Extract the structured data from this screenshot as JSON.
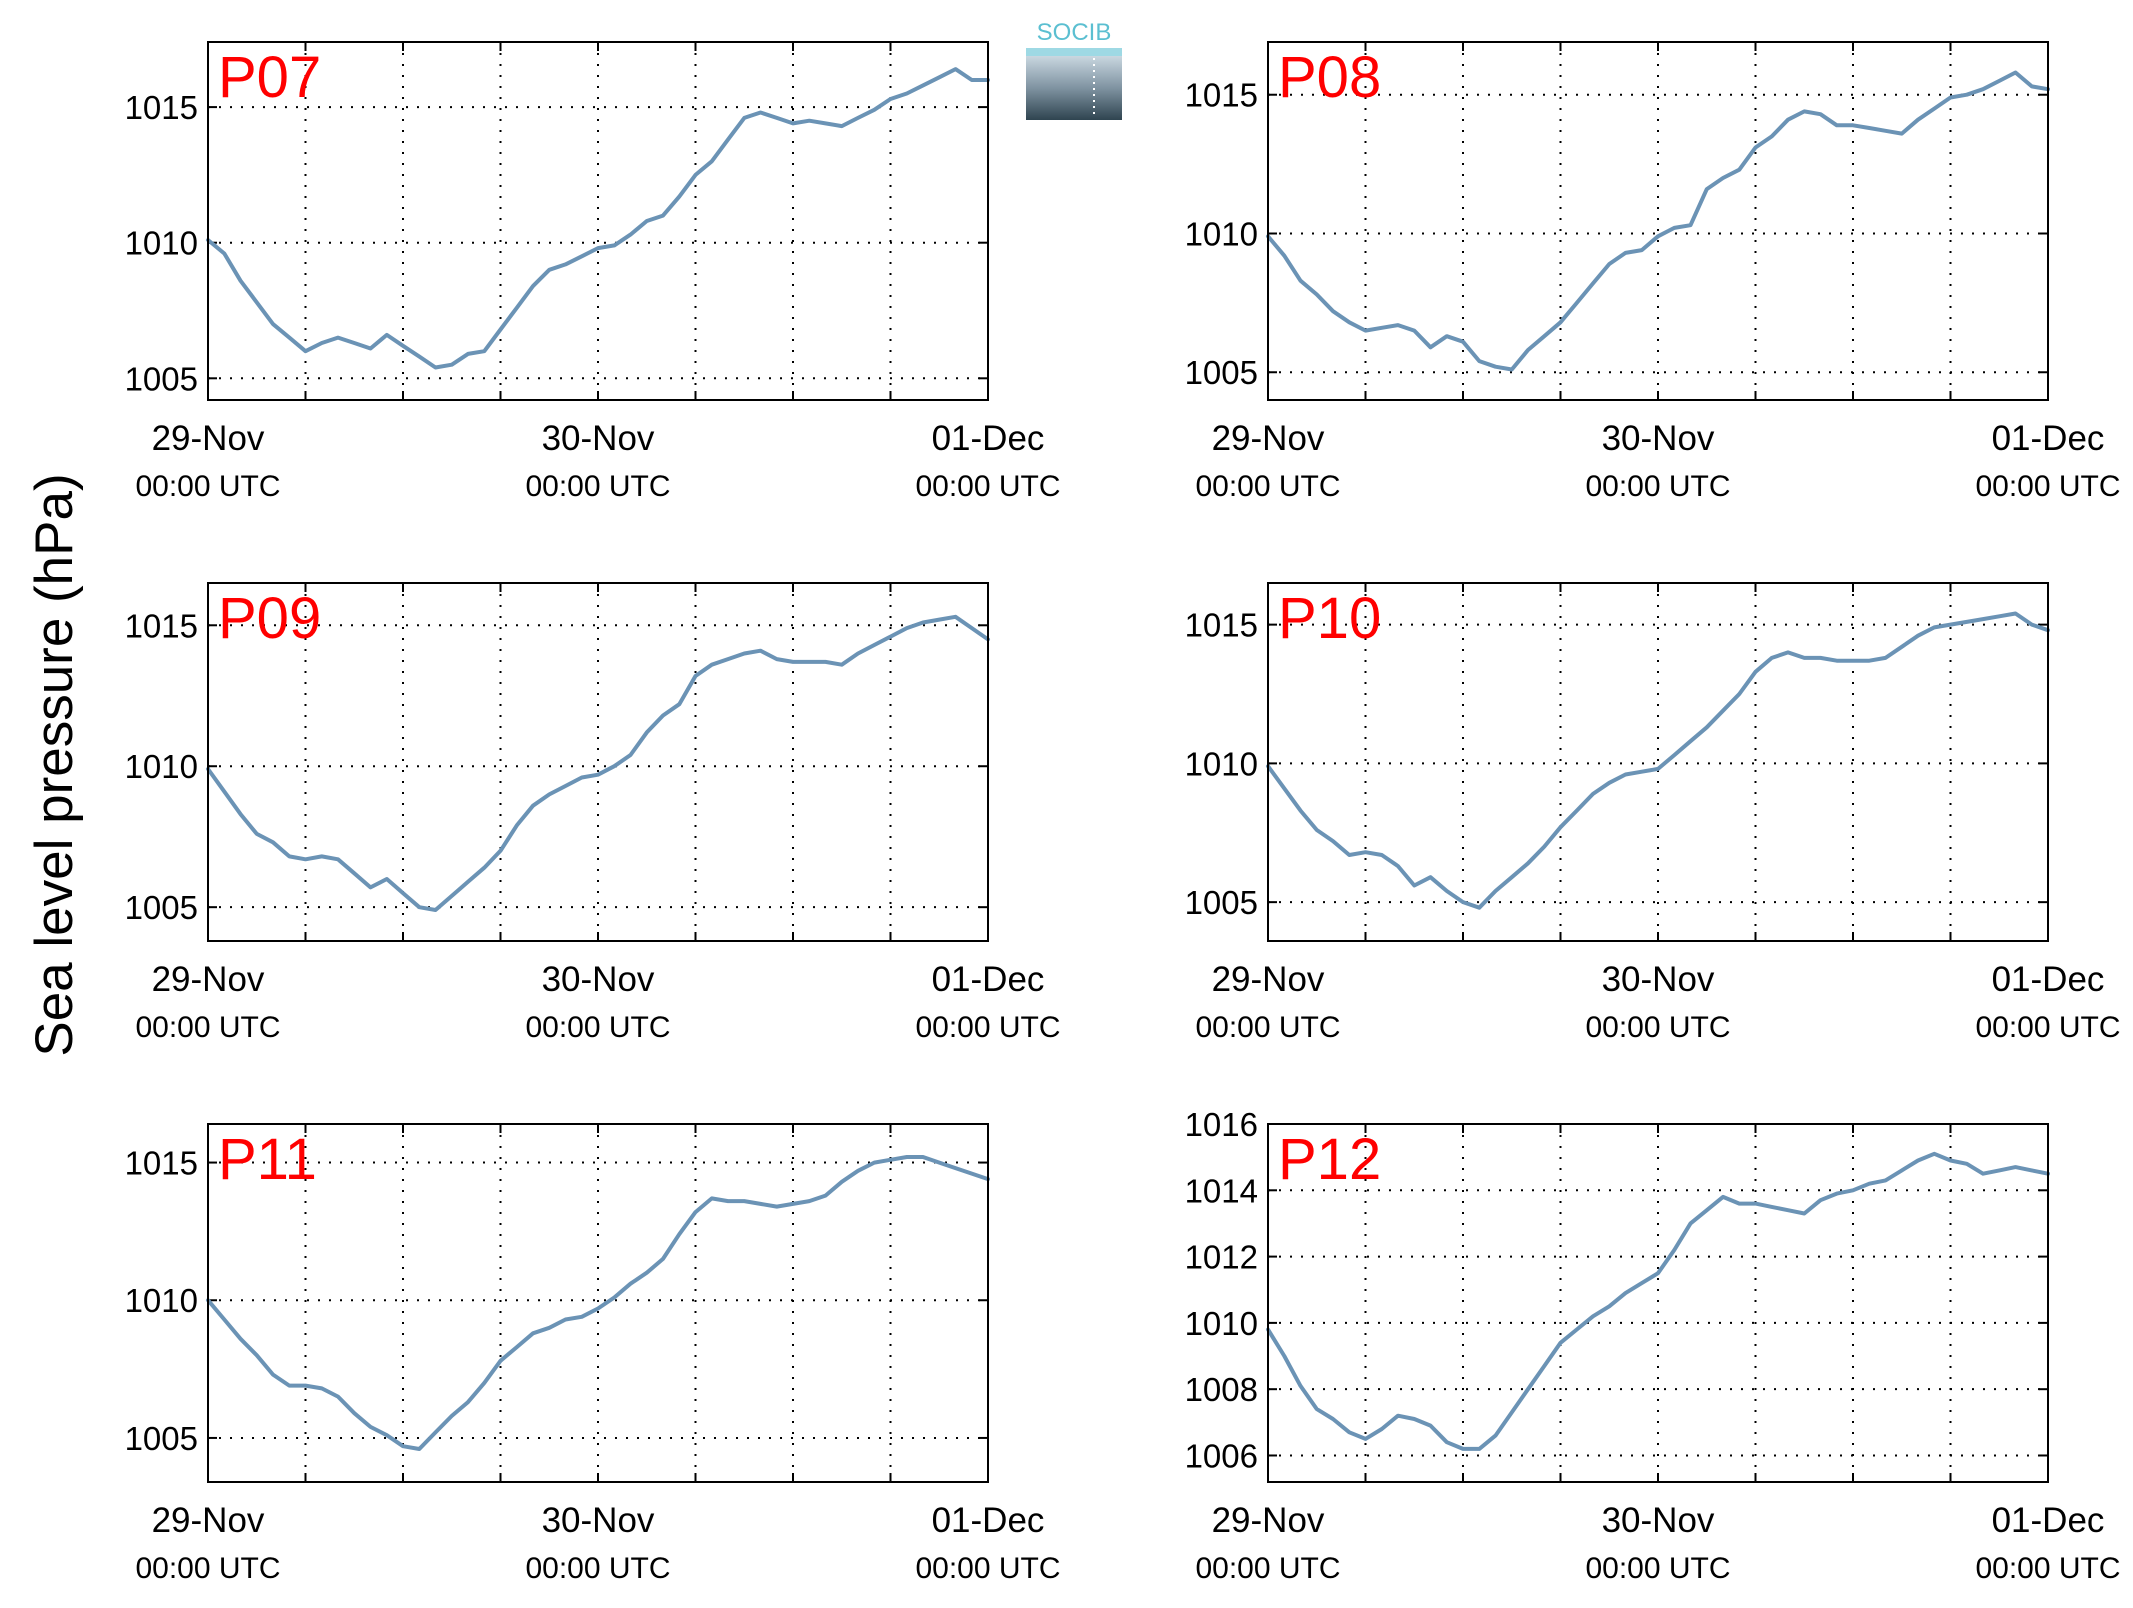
{
  "figure": {
    "ylabel": "Sea level pressure (hPa)",
    "logo_text": "SOCIB"
  },
  "colors": {
    "line": "#6b93b5",
    "panel_label": "#ff0000",
    "grid": "#000000",
    "logo_text": "#5bbfd1"
  },
  "chart_data": [
    {
      "type": "line",
      "title": "P07",
      "x_ticks": [
        "29-Nov",
        "30-Nov",
        "01-Dec"
      ],
      "x_tick_sublabels": [
        "00:00 UTC",
        "00:00 UTC",
        "00:00 UTC"
      ],
      "xlim_hours": [
        0,
        48
      ],
      "ylim": [
        1004.2,
        1017.4
      ],
      "y_ticks": [
        1005,
        1010,
        1015
      ],
      "grid": true,
      "series": [
        {
          "x_hours": [
            0,
            1,
            2,
            3,
            4,
            5,
            6,
            7,
            8,
            9,
            10,
            11,
            12,
            13,
            14,
            15,
            16,
            17,
            18,
            19,
            20,
            21,
            22,
            23,
            24,
            25,
            26,
            27,
            28,
            29,
            30,
            31,
            32,
            33,
            34,
            35,
            36,
            37,
            38,
            39,
            40,
            41,
            42,
            43,
            44,
            45,
            46,
            47,
            48
          ],
          "values": [
            1010.1,
            1009.6,
            1008.6,
            1007.8,
            1007.0,
            1006.5,
            1006.0,
            1006.3,
            1006.5,
            1006.3,
            1006.1,
            1006.6,
            1006.2,
            1005.8,
            1005.4,
            1005.5,
            1005.9,
            1006.0,
            1006.8,
            1007.6,
            1008.4,
            1009.0,
            1009.2,
            1009.5,
            1009.8,
            1009.9,
            1010.3,
            1010.8,
            1011.0,
            1011.7,
            1012.5,
            1013.0,
            1013.8,
            1014.6,
            1014.8,
            1014.6,
            1014.4,
            1014.5,
            1014.4,
            1014.3,
            1014.6,
            1014.9,
            1015.3,
            1015.5,
            1015.8,
            1016.1,
            1016.4,
            1016.0,
            1016.0
          ]
        }
      ]
    },
    {
      "type": "line",
      "title": "P08",
      "x_ticks": [
        "29-Nov",
        "30-Nov",
        "01-Dec"
      ],
      "x_tick_sublabels": [
        "00:00 UTC",
        "00:00 UTC",
        "00:00 UTC"
      ],
      "xlim_hours": [
        0,
        48
      ],
      "ylim": [
        1004.0,
        1016.9
      ],
      "y_ticks": [
        1005,
        1010,
        1015
      ],
      "grid": true,
      "series": [
        {
          "x_hours": [
            0,
            1,
            2,
            3,
            4,
            5,
            6,
            7,
            8,
            9,
            10,
            11,
            12,
            13,
            14,
            15,
            16,
            17,
            18,
            19,
            20,
            21,
            22,
            23,
            24,
            25,
            26,
            27,
            28,
            29,
            30,
            31,
            32,
            33,
            34,
            35,
            36,
            37,
            38,
            39,
            40,
            41,
            42,
            43,
            44,
            45,
            46,
            47,
            48
          ],
          "values": [
            1009.9,
            1009.2,
            1008.3,
            1007.8,
            1007.2,
            1006.8,
            1006.5,
            1006.6,
            1006.7,
            1006.5,
            1005.9,
            1006.3,
            1006.1,
            1005.4,
            1005.2,
            1005.1,
            1005.8,
            1006.3,
            1006.8,
            1007.5,
            1008.2,
            1008.9,
            1009.3,
            1009.4,
            1009.9,
            1010.2,
            1010.3,
            1011.6,
            1012.0,
            1012.3,
            1013.1,
            1013.5,
            1014.1,
            1014.4,
            1014.3,
            1013.9,
            1013.9,
            1013.8,
            1013.7,
            1013.6,
            1014.1,
            1014.5,
            1014.9,
            1015.0,
            1015.2,
            1015.5,
            1015.8,
            1015.3,
            1015.2
          ]
        }
      ]
    },
    {
      "type": "line",
      "title": "P09",
      "x_ticks": [
        "29-Nov",
        "30-Nov",
        "01-Dec"
      ],
      "x_tick_sublabels": [
        "00:00 UTC",
        "00:00 UTC",
        "00:00 UTC"
      ],
      "xlim_hours": [
        0,
        48
      ],
      "ylim": [
        1003.8,
        1016.5
      ],
      "y_ticks": [
        1005,
        1010,
        1015
      ],
      "grid": true,
      "series": [
        {
          "x_hours": [
            0,
            1,
            2,
            3,
            4,
            5,
            6,
            7,
            8,
            9,
            10,
            11,
            12,
            13,
            14,
            15,
            16,
            17,
            18,
            19,
            20,
            21,
            22,
            23,
            24,
            25,
            26,
            27,
            28,
            29,
            30,
            31,
            32,
            33,
            34,
            35,
            36,
            37,
            38,
            39,
            40,
            41,
            42,
            43,
            44,
            45,
            46,
            47,
            48
          ],
          "values": [
            1009.9,
            1009.1,
            1008.3,
            1007.6,
            1007.3,
            1006.8,
            1006.7,
            1006.8,
            1006.7,
            1006.2,
            1005.7,
            1006.0,
            1005.5,
            1005.0,
            1004.9,
            1005.4,
            1005.9,
            1006.4,
            1007.0,
            1007.9,
            1008.6,
            1009.0,
            1009.3,
            1009.6,
            1009.7,
            1010.0,
            1010.4,
            1011.2,
            1011.8,
            1012.2,
            1013.2,
            1013.6,
            1013.8,
            1014.0,
            1014.1,
            1013.8,
            1013.7,
            1013.7,
            1013.7,
            1013.6,
            1014.0,
            1014.3,
            1014.6,
            1014.9,
            1015.1,
            1015.2,
            1015.3,
            1014.9,
            1014.5
          ]
        }
      ]
    },
    {
      "type": "line",
      "title": "P10",
      "x_ticks": [
        "29-Nov",
        "30-Nov",
        "01-Dec"
      ],
      "x_tick_sublabels": [
        "00:00 UTC",
        "00:00 UTC",
        "00:00 UTC"
      ],
      "xlim_hours": [
        0,
        48
      ],
      "ylim": [
        1003.6,
        1016.5
      ],
      "y_ticks": [
        1005,
        1010,
        1015
      ],
      "grid": true,
      "series": [
        {
          "x_hours": [
            0,
            1,
            2,
            3,
            4,
            5,
            6,
            7,
            8,
            9,
            10,
            11,
            12,
            13,
            14,
            15,
            16,
            17,
            18,
            19,
            20,
            21,
            22,
            23,
            24,
            25,
            26,
            27,
            28,
            29,
            30,
            31,
            32,
            33,
            34,
            35,
            36,
            37,
            38,
            39,
            40,
            41,
            42,
            43,
            44,
            45,
            46,
            47,
            48
          ],
          "values": [
            1009.9,
            1009.1,
            1008.3,
            1007.6,
            1007.2,
            1006.7,
            1006.8,
            1006.7,
            1006.3,
            1005.6,
            1005.9,
            1005.4,
            1005.0,
            1004.8,
            1005.4,
            1005.9,
            1006.4,
            1007.0,
            1007.7,
            1008.3,
            1008.9,
            1009.3,
            1009.6,
            1009.7,
            1009.8,
            1010.3,
            1010.8,
            1011.3,
            1011.9,
            1012.5,
            1013.3,
            1013.8,
            1014.0,
            1013.8,
            1013.8,
            1013.7,
            1013.7,
            1013.7,
            1013.8,
            1014.2,
            1014.6,
            1014.9,
            1015.0,
            1015.1,
            1015.2,
            1015.3,
            1015.4,
            1015.0,
            1014.8
          ]
        }
      ]
    },
    {
      "type": "line",
      "title": "P11",
      "x_ticks": [
        "29-Nov",
        "30-Nov",
        "01-Dec"
      ],
      "x_tick_sublabels": [
        "00:00 UTC",
        "00:00 UTC",
        "00:00 UTC"
      ],
      "xlim_hours": [
        0,
        48
      ],
      "ylim": [
        1003.4,
        1016.4
      ],
      "y_ticks": [
        1005,
        1010,
        1015
      ],
      "grid": true,
      "series": [
        {
          "x_hours": [
            0,
            1,
            2,
            3,
            4,
            5,
            6,
            7,
            8,
            9,
            10,
            11,
            12,
            13,
            14,
            15,
            16,
            17,
            18,
            19,
            20,
            21,
            22,
            23,
            24,
            25,
            26,
            27,
            28,
            29,
            30,
            31,
            32,
            33,
            34,
            35,
            36,
            37,
            38,
            39,
            40,
            41,
            42,
            43,
            44,
            45,
            46,
            47,
            48
          ],
          "values": [
            1010.0,
            1009.3,
            1008.6,
            1008.0,
            1007.3,
            1006.9,
            1006.9,
            1006.8,
            1006.5,
            1005.9,
            1005.4,
            1005.1,
            1004.7,
            1004.6,
            1005.2,
            1005.8,
            1006.3,
            1007.0,
            1007.8,
            1008.3,
            1008.8,
            1009.0,
            1009.3,
            1009.4,
            1009.7,
            1010.1,
            1010.6,
            1011.0,
            1011.5,
            1012.4,
            1013.2,
            1013.7,
            1013.6,
            1013.6,
            1013.5,
            1013.4,
            1013.5,
            1013.6,
            1013.8,
            1014.3,
            1014.7,
            1015.0,
            1015.1,
            1015.2,
            1015.2,
            1015.0,
            1014.8,
            1014.6,
            1014.4
          ]
        }
      ]
    },
    {
      "type": "line",
      "title": "P12",
      "x_ticks": [
        "29-Nov",
        "30-Nov",
        "01-Dec"
      ],
      "x_tick_sublabels": [
        "00:00 UTC",
        "00:00 UTC",
        "00:00 UTC"
      ],
      "xlim_hours": [
        0,
        48
      ],
      "ylim": [
        1005.2,
        1016.0
      ],
      "y_ticks": [
        1006,
        1008,
        1010,
        1012,
        1014,
        1016
      ],
      "grid": true,
      "series": [
        {
          "x_hours": [
            0,
            1,
            2,
            3,
            4,
            5,
            6,
            7,
            8,
            9,
            10,
            11,
            12,
            13,
            14,
            15,
            16,
            17,
            18,
            19,
            20,
            21,
            22,
            23,
            24,
            25,
            26,
            27,
            28,
            29,
            30,
            31,
            32,
            33,
            34,
            35,
            36,
            37,
            38,
            39,
            40,
            41,
            42,
            43,
            44,
            45,
            46,
            47,
            48
          ],
          "values": [
            1009.8,
            1009.0,
            1008.1,
            1007.4,
            1007.1,
            1006.7,
            1006.5,
            1006.8,
            1007.2,
            1007.1,
            1006.9,
            1006.4,
            1006.2,
            1006.2,
            1006.6,
            1007.3,
            1008.0,
            1008.7,
            1009.4,
            1009.8,
            1010.2,
            1010.5,
            1010.9,
            1011.2,
            1011.5,
            1012.2,
            1013.0,
            1013.4,
            1013.8,
            1013.6,
            1013.6,
            1013.5,
            1013.4,
            1013.3,
            1013.7,
            1013.9,
            1014.0,
            1014.2,
            1014.3,
            1014.6,
            1014.9,
            1015.1,
            1014.9,
            1014.8,
            1014.5,
            1014.6,
            1014.7,
            1014.6,
            1014.5
          ]
        }
      ]
    }
  ]
}
